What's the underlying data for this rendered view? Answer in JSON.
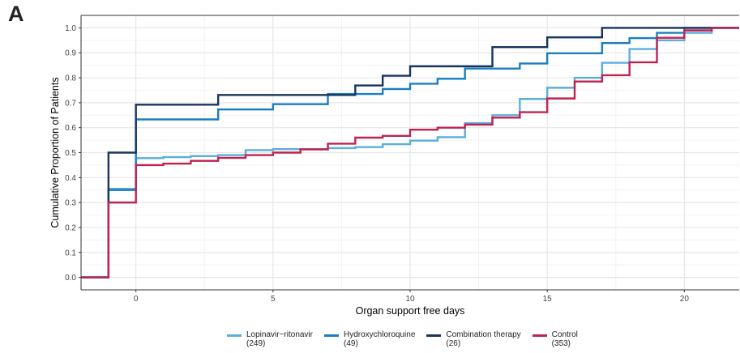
{
  "panel_label": "A",
  "chart_data": {
    "type": "line",
    "step": true,
    "title": "",
    "xlabel": "Organ support free days",
    "ylabel": "Cumulative Proportion of Patients",
    "xlim": [
      -2,
      22
    ],
    "ylim": [
      -0.05,
      1.05
    ],
    "xticks": [
      0,
      5,
      10,
      15,
      20
    ],
    "yticks": [
      0.0,
      0.1,
      0.2,
      0.3,
      0.4,
      0.5,
      0.6,
      0.7,
      0.8,
      0.9,
      1.0
    ],
    "ytick_labels": [
      "0.0",
      "0.1",
      "0.2",
      "0.3",
      "0.4",
      "0.5",
      "0.6",
      "0.7",
      "0.8",
      "0.9",
      "1.0"
    ],
    "xtick_labels": [
      "0",
      "5",
      "10",
      "15",
      "20"
    ],
    "grid": true,
    "legend_position": "bottom",
    "series": [
      {
        "name": "Lopinavir−ritonavir",
        "count": "(249)",
        "color": "#5aaedc",
        "x": [
          -2,
          -1,
          0,
          1,
          2,
          3,
          4,
          5,
          6,
          7,
          8,
          9,
          10,
          11,
          12,
          13,
          14,
          15,
          16,
          17,
          18,
          19,
          20,
          21,
          22
        ],
        "y": [
          0.0,
          0.355,
          0.478,
          0.482,
          0.486,
          0.49,
          0.51,
          0.514,
          0.514,
          0.518,
          0.522,
          0.534,
          0.548,
          0.562,
          0.618,
          0.65,
          0.715,
          0.76,
          0.8,
          0.86,
          0.915,
          0.95,
          0.98,
          1.0,
          1.0
        ]
      },
      {
        "name": "Hydroxychloroquine",
        "count": "(49)",
        "color": "#1a7ec0",
        "x": [
          -2,
          -1,
          0,
          3,
          5,
          7,
          8,
          9,
          10,
          11,
          12,
          14,
          15,
          17,
          18,
          19,
          20,
          22
        ],
        "y": [
          0.0,
          0.35,
          0.633,
          0.673,
          0.694,
          0.735,
          0.735,
          0.755,
          0.776,
          0.796,
          0.837,
          0.857,
          0.898,
          0.939,
          0.959,
          0.98,
          1.0,
          1.0
        ]
      },
      {
        "name": "Combination therapy",
        "count": "(26)",
        "color": "#17355f",
        "x": [
          -2,
          -1,
          0,
          3,
          8,
          9,
          10,
          13,
          15,
          17,
          22
        ],
        "y": [
          0.0,
          0.5,
          0.692,
          0.731,
          0.769,
          0.808,
          0.846,
          0.923,
          0.962,
          1.0,
          1.0
        ]
      },
      {
        "name": "Control",
        "count": "(353)",
        "color": "#c0224f",
        "x": [
          -2,
          -1,
          0,
          1,
          2,
          3,
          4,
          5,
          6,
          7,
          8,
          9,
          10,
          11,
          12,
          13,
          14,
          15,
          16,
          17,
          18,
          19,
          20,
          21,
          22
        ],
        "y": [
          0.0,
          0.3,
          0.45,
          0.456,
          0.467,
          0.479,
          0.49,
          0.5,
          0.513,
          0.536,
          0.56,
          0.567,
          0.592,
          0.6,
          0.612,
          0.64,
          0.662,
          0.717,
          0.785,
          0.81,
          0.862,
          0.96,
          0.99,
          1.0,
          1.0
        ]
      }
    ]
  }
}
